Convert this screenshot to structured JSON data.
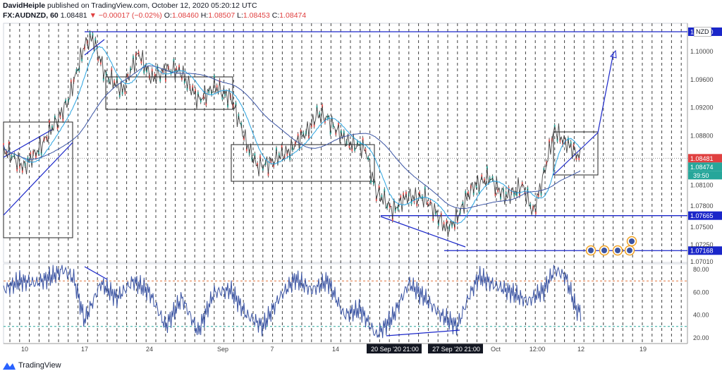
{
  "header": {
    "author": "DavidHeiple",
    "published": "published on TradingView.com, October 12, 2020 05:20:12 UTC",
    "symbol": "FX:AUDNZD, 60",
    "price": "1.08481",
    "arrow": "▼",
    "change": "−0.00017 (−0.02%)",
    "o_label": "O:",
    "o_val": "1.08460",
    "h_label": "H:",
    "h_val": "1.08507",
    "l_label": "L:",
    "l_val": "1.08453",
    "c_label": "C:",
    "c_val": "1.08474"
  },
  "currency_label": "NZD",
  "footer_brand": "TradingView",
  "colors": {
    "line": "#3b54a3",
    "ma": "#29a3e0",
    "box": "#222222",
    "level": "#1a26c9",
    "candle": "#333333",
    "up": "#26a69a",
    "down": "#ef5350",
    "rsi": "#3b54a3",
    "rsi_upper": "#e0733c",
    "rsi_lower": "#26a69a"
  },
  "price_axis": {
    "ticks": [
      "1.10280",
      "1.10000",
      "1.09600",
      "1.09200",
      "1.08800",
      "1.08481",
      "1.08474",
      "39:50",
      "1.08100",
      "1.07800",
      "1.07665",
      "1.07500",
      "1.07168",
      "1.07010"
    ],
    "labels": [
      "1.10000",
      "1.09600",
      "1.09200",
      "1.08800",
      "1.08100",
      "1.07800",
      "1.07500",
      "1.07250",
      "1.07010"
    ]
  },
  "rsi_axis": {
    "labels": [
      "80.00",
      "60.00",
      "40.00",
      "20.00"
    ]
  },
  "time_axis": {
    "labels": [
      "10",
      "17",
      "24",
      "Sep",
      "7",
      "14",
      "20 Sep '20   21:00",
      "27 Sep '20   21:00",
      "Oct",
      "12:00",
      "12",
      "19"
    ]
  },
  "chart_data": {
    "type": "candlestick",
    "symbol": "FX:AUDNZD",
    "interval": "60",
    "ylim": [
      1.07,
      1.104
    ],
    "horizontal_levels": [
      {
        "label": "1.10280",
        "value": 1.1028
      },
      {
        "label": "1.07665",
        "value": 1.07665
      },
      {
        "label": "1.07168",
        "value": 1.07168
      }
    ],
    "current_price": {
      "label": "1.08481",
      "value": 1.08481
    },
    "close_price": {
      "label": "1.08474",
      "value": 1.08474
    },
    "countdown": "39:50",
    "price_path": [
      [
        0,
        1.086
      ],
      [
        8,
        1.0835
      ],
      [
        16,
        1.0878
      ],
      [
        24,
        1.093
      ],
      [
        30,
        1.101
      ],
      [
        33,
        1.1018
      ],
      [
        38,
        1.0965
      ],
      [
        44,
        1.0945
      ],
      [
        50,
        1.0998
      ],
      [
        55,
        1.096
      ],
      [
        60,
        1.0975
      ],
      [
        66,
        1.097
      ],
      [
        72,
        1.093
      ],
      [
        78,
        1.095
      ],
      [
        84,
        1.0935
      ],
      [
        90,
        1.087
      ],
      [
        94,
        1.0835
      ],
      [
        100,
        1.0845
      ],
      [
        106,
        1.086
      ],
      [
        112,
        1.0885
      ],
      [
        116,
        1.091
      ],
      [
        120,
        1.0905
      ],
      [
        126,
        1.0875
      ],
      [
        134,
        1.086
      ],
      [
        138,
        1.08
      ],
      [
        144,
        1.0775
      ],
      [
        150,
        1.0795
      ],
      [
        156,
        1.079
      ],
      [
        160,
        1.0772
      ],
      [
        164,
        1.0745
      ],
      [
        168,
        1.0765
      ],
      [
        174,
        1.081
      ],
      [
        180,
        1.082
      ],
      [
        186,
        1.0792
      ],
      [
        192,
        1.081
      ],
      [
        196,
        1.077
      ],
      [
        200,
        1.0825
      ],
      [
        204,
        1.089
      ],
      [
        208,
        1.087
      ],
      [
        214,
        1.0848
      ]
    ],
    "rsi": {
      "upper": 70,
      "lower": 30,
      "ylim": [
        15,
        85
      ],
      "path": [
        [
          0,
          62
        ],
        [
          6,
          70
        ],
        [
          12,
          68
        ],
        [
          18,
          74
        ],
        [
          22,
          80
        ],
        [
          26,
          72
        ],
        [
          30,
          35
        ],
        [
          36,
          68
        ],
        [
          42,
          55
        ],
        [
          48,
          70
        ],
        [
          54,
          60
        ],
        [
          60,
          30
        ],
        [
          66,
          55
        ],
        [
          72,
          25
        ],
        [
          78,
          60
        ],
        [
          84,
          62
        ],
        [
          90,
          40
        ],
        [
          96,
          30
        ],
        [
          102,
          55
        ],
        [
          108,
          72
        ],
        [
          114,
          62
        ],
        [
          120,
          70
        ],
        [
          126,
          40
        ],
        [
          132,
          45
        ],
        [
          138,
          22
        ],
        [
          144,
          38
        ],
        [
          150,
          68
        ],
        [
          156,
          55
        ],
        [
          162,
          40
        ],
        [
          168,
          30
        ],
        [
          172,
          55
        ],
        [
          176,
          74
        ],
        [
          182,
          66
        ],
        [
          188,
          60
        ],
        [
          194,
          52
        ],
        [
          200,
          62
        ],
        [
          204,
          80
        ],
        [
          208,
          74
        ],
        [
          212,
          45
        ],
        [
          214,
          42
        ]
      ]
    }
  }
}
